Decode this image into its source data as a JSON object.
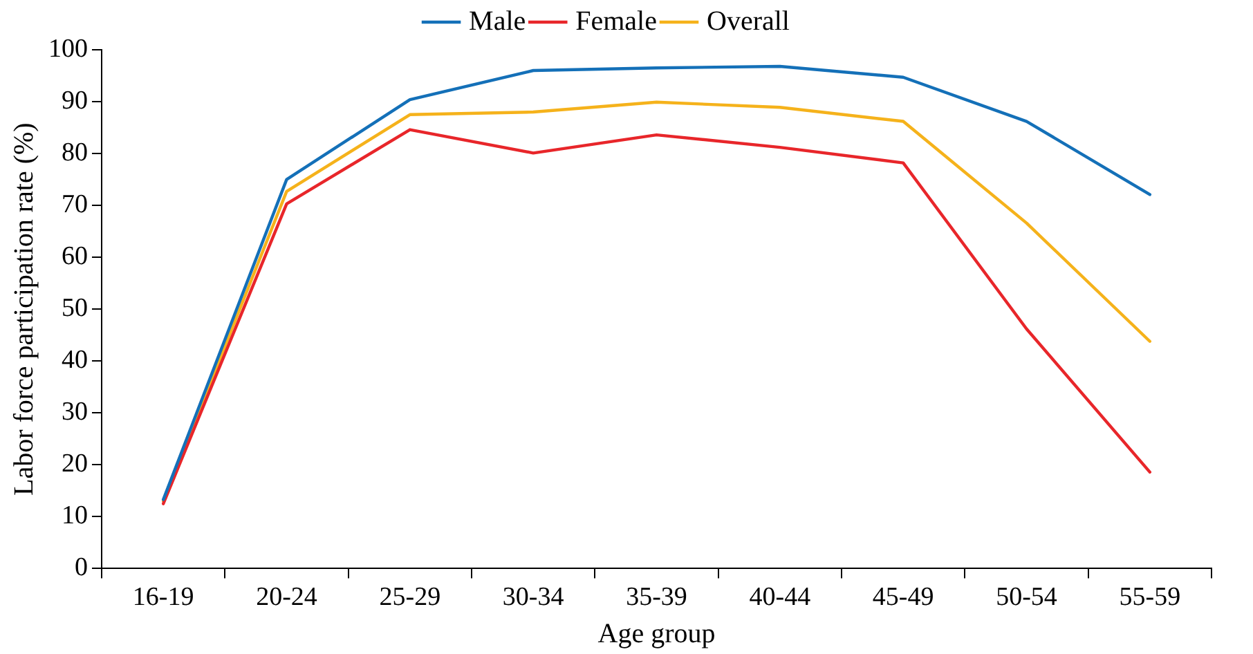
{
  "chart_data": {
    "type": "line",
    "xlabel": "Age group",
    "ylabel": "Labor force participation rate (%)",
    "categories": [
      "16-19",
      "20-24",
      "25-29",
      "30-34",
      "35-39",
      "40-44",
      "45-49",
      "50-54",
      "55-59"
    ],
    "series": [
      {
        "name": "Male",
        "color": "#1470b8",
        "values": [
          13.3,
          75,
          90.4,
          96,
          96.5,
          96.8,
          94.7,
          86.2,
          72.1
        ]
      },
      {
        "name": "Female",
        "color": "#e8262a",
        "values": [
          12.5,
          70.3,
          84.6,
          80.1,
          83.6,
          81.2,
          78.2,
          46.2,
          18.6
        ]
      },
      {
        "name": "Overall",
        "color": "#f5b21b",
        "values": [
          13,
          72.7,
          87.5,
          88,
          89.9,
          88.9,
          86.2,
          66.6,
          43.8
        ]
      }
    ],
    "ylim": [
      0,
      100
    ],
    "yticks": [
      0,
      10,
      20,
      30,
      40,
      50,
      60,
      70,
      80,
      90,
      100
    ],
    "grid": false,
    "legend": "top",
    "marker": "none",
    "line_style": "solid"
  }
}
